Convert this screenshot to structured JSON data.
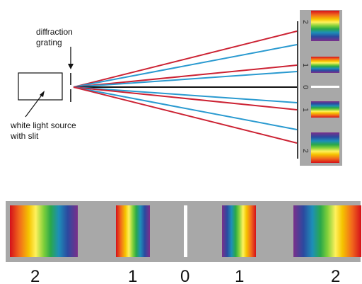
{
  "labels": {
    "grating_line1": "diffraction",
    "grating_line2": "grating",
    "source_line1": "white light source",
    "source_line2": "with slit"
  },
  "top_orders": [
    "2",
    "1",
    "0",
    "1",
    "2"
  ],
  "bottom_orders": [
    "2",
    "1",
    "0",
    "1",
    "2"
  ],
  "colors": {
    "red_ray": "#cc2233",
    "blue_ray": "#2a9ad0",
    "center_ray": "#111111",
    "screen_bg": "#a8a8a8",
    "white_line": "#ffffff"
  },
  "spectrum_colors": [
    "#d4101a",
    "#f26a1c",
    "#f5c400",
    "#fff15c",
    "#7fcf3a",
    "#2aa84a",
    "#1d8fb8",
    "#2b4aa0",
    "#7b2f8a"
  ]
}
